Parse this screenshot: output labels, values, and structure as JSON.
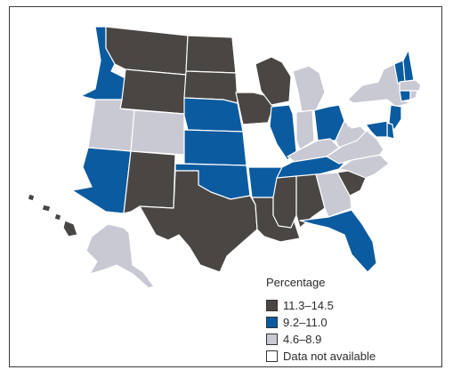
{
  "colors": {
    "dark": "#4a4643",
    "blue": "#0b5ba0",
    "light": "#c9c9d4",
    "na": "#ffffff",
    "outline": "#3b3b3b"
  },
  "legend": {
    "title": "Percentage",
    "items": [
      {
        "label": "11.3–14.5",
        "category": "dark"
      },
      {
        "label": "9.2–11.0",
        "category": "blue"
      },
      {
        "label": "4.6–8.9",
        "category": "light"
      },
      {
        "label": "Data not available",
        "category": "na"
      }
    ]
  },
  "states": {
    "WA": "na",
    "OR": "na",
    "CA": "na",
    "NV": "na",
    "ID": "blue",
    "MT": "dark",
    "WY": "dark",
    "UT": "light",
    "CO": "light",
    "AZ": "blue",
    "NM": "dark",
    "ND": "dark",
    "SD": "dark",
    "NE": "blue",
    "KS": "blue",
    "OK": "blue",
    "TX": "dark",
    "MN": "na",
    "IA": "dark",
    "MO": "na",
    "AR": "blue",
    "LA": "dark",
    "WI": "dark",
    "IL": "blue",
    "MI": "light",
    "IN": "light",
    "OH": "blue",
    "KY": "light",
    "TN": "blue",
    "MS": "dark",
    "AL": "dark",
    "GA": "light",
    "FL": "blue",
    "SC": "dark",
    "NC": "light",
    "VA": "light",
    "WV": "light",
    "PA": "na",
    "NY": "light",
    "VT": "blue",
    "NH": "blue",
    "ME": "na",
    "MA": "light",
    "CT": "blue",
    "RI": "light",
    "NJ": "blue",
    "DE": "blue",
    "MD": "blue",
    "AK": "light",
    "HI": "dark"
  }
}
